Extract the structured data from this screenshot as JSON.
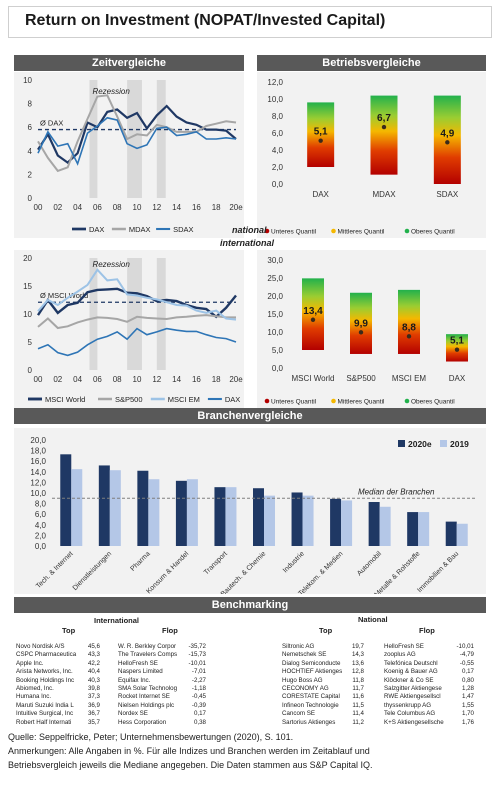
{
  "title": "Return on Investment (NOPAT/Invested Capital)",
  "headers": {
    "zeit": "Zeitvergleiche",
    "betrieb": "Betriebsvergleiche",
    "branchen": "Branchenvergleiche",
    "bench": "Benchmarking"
  },
  "labels": {
    "national": "national",
    "international": "international",
    "rezession": "Rezession",
    "avg_dax": "Ø DAX",
    "avg_msci": "Ø MSCI World",
    "median_branchen": "Median der Branchen"
  },
  "colors": {
    "dax": "#1f3864",
    "mdax": "#a6a6a6",
    "sdax": "#2e75b6",
    "msci_em": "#9dc3e6",
    "recession": "#d9d9d9",
    "bar_2020e": "#1f3864",
    "bar_2019": "#b4c7e7"
  },
  "chart_data": [
    {
      "id": "zeit_national",
      "type": "line",
      "x": [
        "00",
        "01",
        "02",
        "03",
        "04",
        "05",
        "06",
        "07",
        "08",
        "09",
        "10",
        "11",
        "12",
        "13",
        "14",
        "15",
        "16",
        "17",
        "18",
        "19",
        "20e"
      ],
      "xticks": [
        "00",
        "02",
        "04",
        "06",
        "08",
        "10",
        "12",
        "14",
        "16",
        "18",
        "20e"
      ],
      "ylim": [
        0,
        10
      ],
      "yticks": [
        0,
        2,
        4,
        6,
        8,
        10
      ],
      "series": [
        {
          "name": "DAX",
          "values": [
            4.1,
            5.4,
            3.6,
            3.0,
            3.8,
            6.4,
            6.0,
            7.3,
            7.5,
            6.8,
            7.2,
            5.9,
            7.0,
            7.8,
            6.9,
            6.4,
            6.2,
            5.8,
            5.8,
            5.7,
            5.0
          ]
        },
        {
          "name": "MDAX",
          "values": [
            4.8,
            3.4,
            2.3,
            2.6,
            4.8,
            6.7,
            8.6,
            8.7,
            6.9,
            5.0,
            5.4,
            5.3,
            6.2,
            6.0,
            5.6,
            5.6,
            5.6,
            6.1,
            6.3,
            6.5,
            6.4
          ]
        },
        {
          "name": "SDAX",
          "values": [
            3.8,
            5.6,
            4.4,
            4.6,
            2.9,
            5.5,
            6.1,
            6.8,
            6.6,
            4.6,
            4.2,
            4.5,
            5.9,
            6.0,
            5.3,
            5.4,
            5.6,
            5.0,
            5.0,
            5.1,
            5.0
          ]
        }
      ],
      "avg_line": 5.8,
      "recessions": [
        [
          2005.2,
          2006.0
        ],
        [
          2009.0,
          2010.5
        ],
        [
          2012.0,
          2012.9
        ]
      ]
    },
    {
      "id": "betrieb_national",
      "type": "bar",
      "categories": [
        "DAX",
        "MDAX",
        "SDAX"
      ],
      "ylim": [
        0,
        12
      ],
      "yticks": [
        "0,0",
        "2,0",
        "4,0",
        "6,0",
        "8,0",
        "10,0",
        "12,0"
      ],
      "ranges": [
        [
          2.0,
          9.6
        ],
        [
          1.1,
          10.4
        ],
        [
          0.0,
          10.4
        ]
      ],
      "medians": [
        5.1,
        6.7,
        4.9
      ],
      "median_labels": [
        "5,1",
        "6,7",
        "4,9"
      ],
      "legend": [
        "Unteres Quantil",
        "Mittleres Quantil",
        "Oberes Quantil"
      ]
    },
    {
      "id": "zeit_international",
      "type": "line",
      "x": [
        "00",
        "01",
        "02",
        "03",
        "04",
        "05",
        "06",
        "07",
        "08",
        "09",
        "10",
        "11",
        "12",
        "13",
        "14",
        "15",
        "16",
        "17",
        "18",
        "19",
        "20e"
      ],
      "xticks": [
        "00",
        "02",
        "04",
        "06",
        "08",
        "10",
        "12",
        "14",
        "16",
        "18",
        "20e"
      ],
      "ylim": [
        0,
        20
      ],
      "yticks": [
        0,
        5,
        10,
        15,
        20
      ],
      "series": [
        {
          "name": "MSCI World",
          "values": [
            9.8,
            12.5,
            10.2,
            11.6,
            12.0,
            13.9,
            14.3,
            14.4,
            14.5,
            13.8,
            13.7,
            13.2,
            12.3,
            12.5,
            12.3,
            11.6,
            11.1,
            10.9,
            9.5,
            11.1,
            13.3
          ]
        },
        {
          "name": "S&P500",
          "values": [
            7.7,
            9.2,
            7.5,
            7.8,
            8.5,
            9.0,
            9.4,
            9.3,
            9.1,
            8.6,
            9.5,
            9.3,
            9.2,
            9.1,
            9.4,
            9.5,
            9.7,
            9.8,
            9.6,
            9.4,
            9.4
          ]
        },
        {
          "name": "MSCI EM",
          "values": [
            10.5,
            12.5,
            11.6,
            12.9,
            14.0,
            15.2,
            17.9,
            16.0,
            16.2,
            13.5,
            13.3,
            12.9,
            12.6,
            12.1,
            11.6,
            11.5,
            10.6,
            10.2,
            10.6,
            9.2,
            9.0
          ]
        },
        {
          "name": "DAX",
          "values": [
            3.8,
            4.5,
            3.1,
            2.6,
            3.2,
            4.5,
            5.5,
            6.0,
            6.8,
            5.5,
            7.4,
            6.3,
            6.8,
            7.4,
            7.1,
            6.9,
            6.9,
            6.3,
            5.8,
            5.6,
            5.0
          ]
        }
      ],
      "avg_line": 12.1,
      "recessions": [
        [
          2005.2,
          2006.0
        ],
        [
          2009.0,
          2010.5
        ],
        [
          2012.0,
          2012.9
        ]
      ]
    },
    {
      "id": "betrieb_international",
      "type": "bar",
      "categories": [
        "MSCI World",
        "S&P500",
        "MSCI EM",
        "DAX"
      ],
      "ylim": [
        0,
        30
      ],
      "yticks": [
        "0,0",
        "5,0",
        "10,0",
        "15,0",
        "20,0",
        "25,0",
        "30,0"
      ],
      "ranges": [
        [
          5.0,
          24.9
        ],
        [
          3.9,
          20.9
        ],
        [
          3.9,
          21.7
        ],
        [
          1.8,
          9.4
        ]
      ],
      "medians": [
        13.4,
        9.9,
        8.8,
        5.1
      ],
      "median_labels": [
        "13,4",
        "9,9",
        "8,8",
        "5,1"
      ],
      "legend": [
        "Unteres Quantil",
        "Mittleres Quantil",
        "Oberes Quantil"
      ]
    },
    {
      "id": "branchen",
      "type": "bar",
      "categories": [
        "Tech. & Internet",
        "Dienstleistungen",
        "Pharma",
        "Konsum & Handel",
        "Transport",
        "Bautech. & Chemie",
        "Industrie",
        "Telekom. & Medien",
        "Automobil",
        "Metalle & Rohstoffe",
        "Immobilien & Bau"
      ],
      "ylim": [
        0,
        20
      ],
      "yticks": [
        "0,0",
        "2,0",
        "4,0",
        "6,0",
        "8,0",
        "10,0",
        "12,0",
        "14,0",
        "16,0",
        "18,0",
        "20,0"
      ],
      "series": [
        {
          "name": "2020e",
          "values": [
            17.3,
            15.2,
            14.2,
            12.3,
            11.1,
            10.9,
            10.1,
            8.9,
            8.3,
            6.4,
            4.6
          ]
        },
        {
          "name": "2019",
          "values": [
            14.5,
            14.3,
            12.6,
            12.6,
            11.1,
            9.5,
            9.5,
            8.6,
            7.4,
            6.4,
            4.2
          ]
        }
      ],
      "median": 9.0
    }
  ],
  "benchmarking": {
    "international_title": "International",
    "national_title": "National",
    "top_label": "Top",
    "flop_label": "Flop",
    "int_top": [
      [
        "Novo Nordisk A/S",
        "45,6"
      ],
      [
        "CSPC Pharmaceutica",
        "43,3"
      ],
      [
        "Apple Inc.",
        "42,2"
      ],
      [
        "Arista Networks, Inc.",
        "40,4"
      ],
      [
        "Booking Holdings Inc",
        "40,3"
      ],
      [
        "Abiomed, Inc.",
        "39,8"
      ],
      [
        "Humana Inc.",
        "37,3"
      ],
      [
        "Maruti Suzuki India L",
        "36,9"
      ],
      [
        "Intuitive Surgical, Inc",
        "36,7"
      ],
      [
        "Robert Half Internati",
        "35,7"
      ]
    ],
    "int_flop": [
      [
        "W. R. Berkley Corpor",
        "-35,72"
      ],
      [
        "The Travelers Comps",
        "-15,73"
      ],
      [
        "HelloFresh SE",
        "-10,01"
      ],
      [
        "Naspers Limited",
        "-7,01"
      ],
      [
        "Equifax Inc.",
        "-2,27"
      ],
      [
        "SMA Solar Technolog",
        "-1,18"
      ],
      [
        "Rocket Internet SE",
        "-0,45"
      ],
      [
        "Nielsen Holdings plc",
        "-0,39"
      ],
      [
        "Nordex SE",
        "0,17"
      ],
      [
        "Hess Corporation",
        "0,38"
      ]
    ],
    "nat_top": [
      [
        "Siltronic AG",
        "19,7"
      ],
      [
        "Nemetschek SE",
        "14,3"
      ],
      [
        "Dialog Semiconducte",
        "13,6"
      ],
      [
        "HOCHTIEF Aktienges",
        "12,8"
      ],
      [
        "Hugo Boss AG",
        "11,8"
      ],
      [
        "CECONOMY AG",
        "11,7"
      ],
      [
        "CORESTATE Capital",
        "11,6"
      ],
      [
        "Infineon Technologie",
        "11,5"
      ],
      [
        "Cancom SE",
        "11,4"
      ],
      [
        "Sartorius Aktienges",
        "11,2"
      ]
    ],
    "nat_flop": [
      [
        "HelloFresh SE",
        "-10,01"
      ],
      [
        "zooplus AG",
        "-4,79"
      ],
      [
        "Telefónica Deutschl",
        "-0,55"
      ],
      [
        "Koenig & Bauer AG",
        "0,17"
      ],
      [
        "Klöckner & Co SE",
        "0,80"
      ],
      [
        "Salzgitter Aktiengese",
        "1,28"
      ],
      [
        "RWE Aktiengesellscl",
        "1,47"
      ],
      [
        "thyssenkrupp AG",
        "1,55"
      ],
      [
        "Tele Columbus AG",
        "1,70"
      ],
      [
        "K+S Aktiengesellsche",
        "1,76"
      ]
    ]
  },
  "footer": {
    "source": "Quelle: Seppelfricke, Peter; Unternehmensbewertungen (2020), S. 101.",
    "note1": "Anmerkungen: Alle Angaben in %. Für alle Indizes und Branchen werden im Zeitablauf und",
    "note2": "Betriebsvergleich jeweils die Mediane angegeben. Die Daten stammen aus S&P Capital IQ."
  }
}
